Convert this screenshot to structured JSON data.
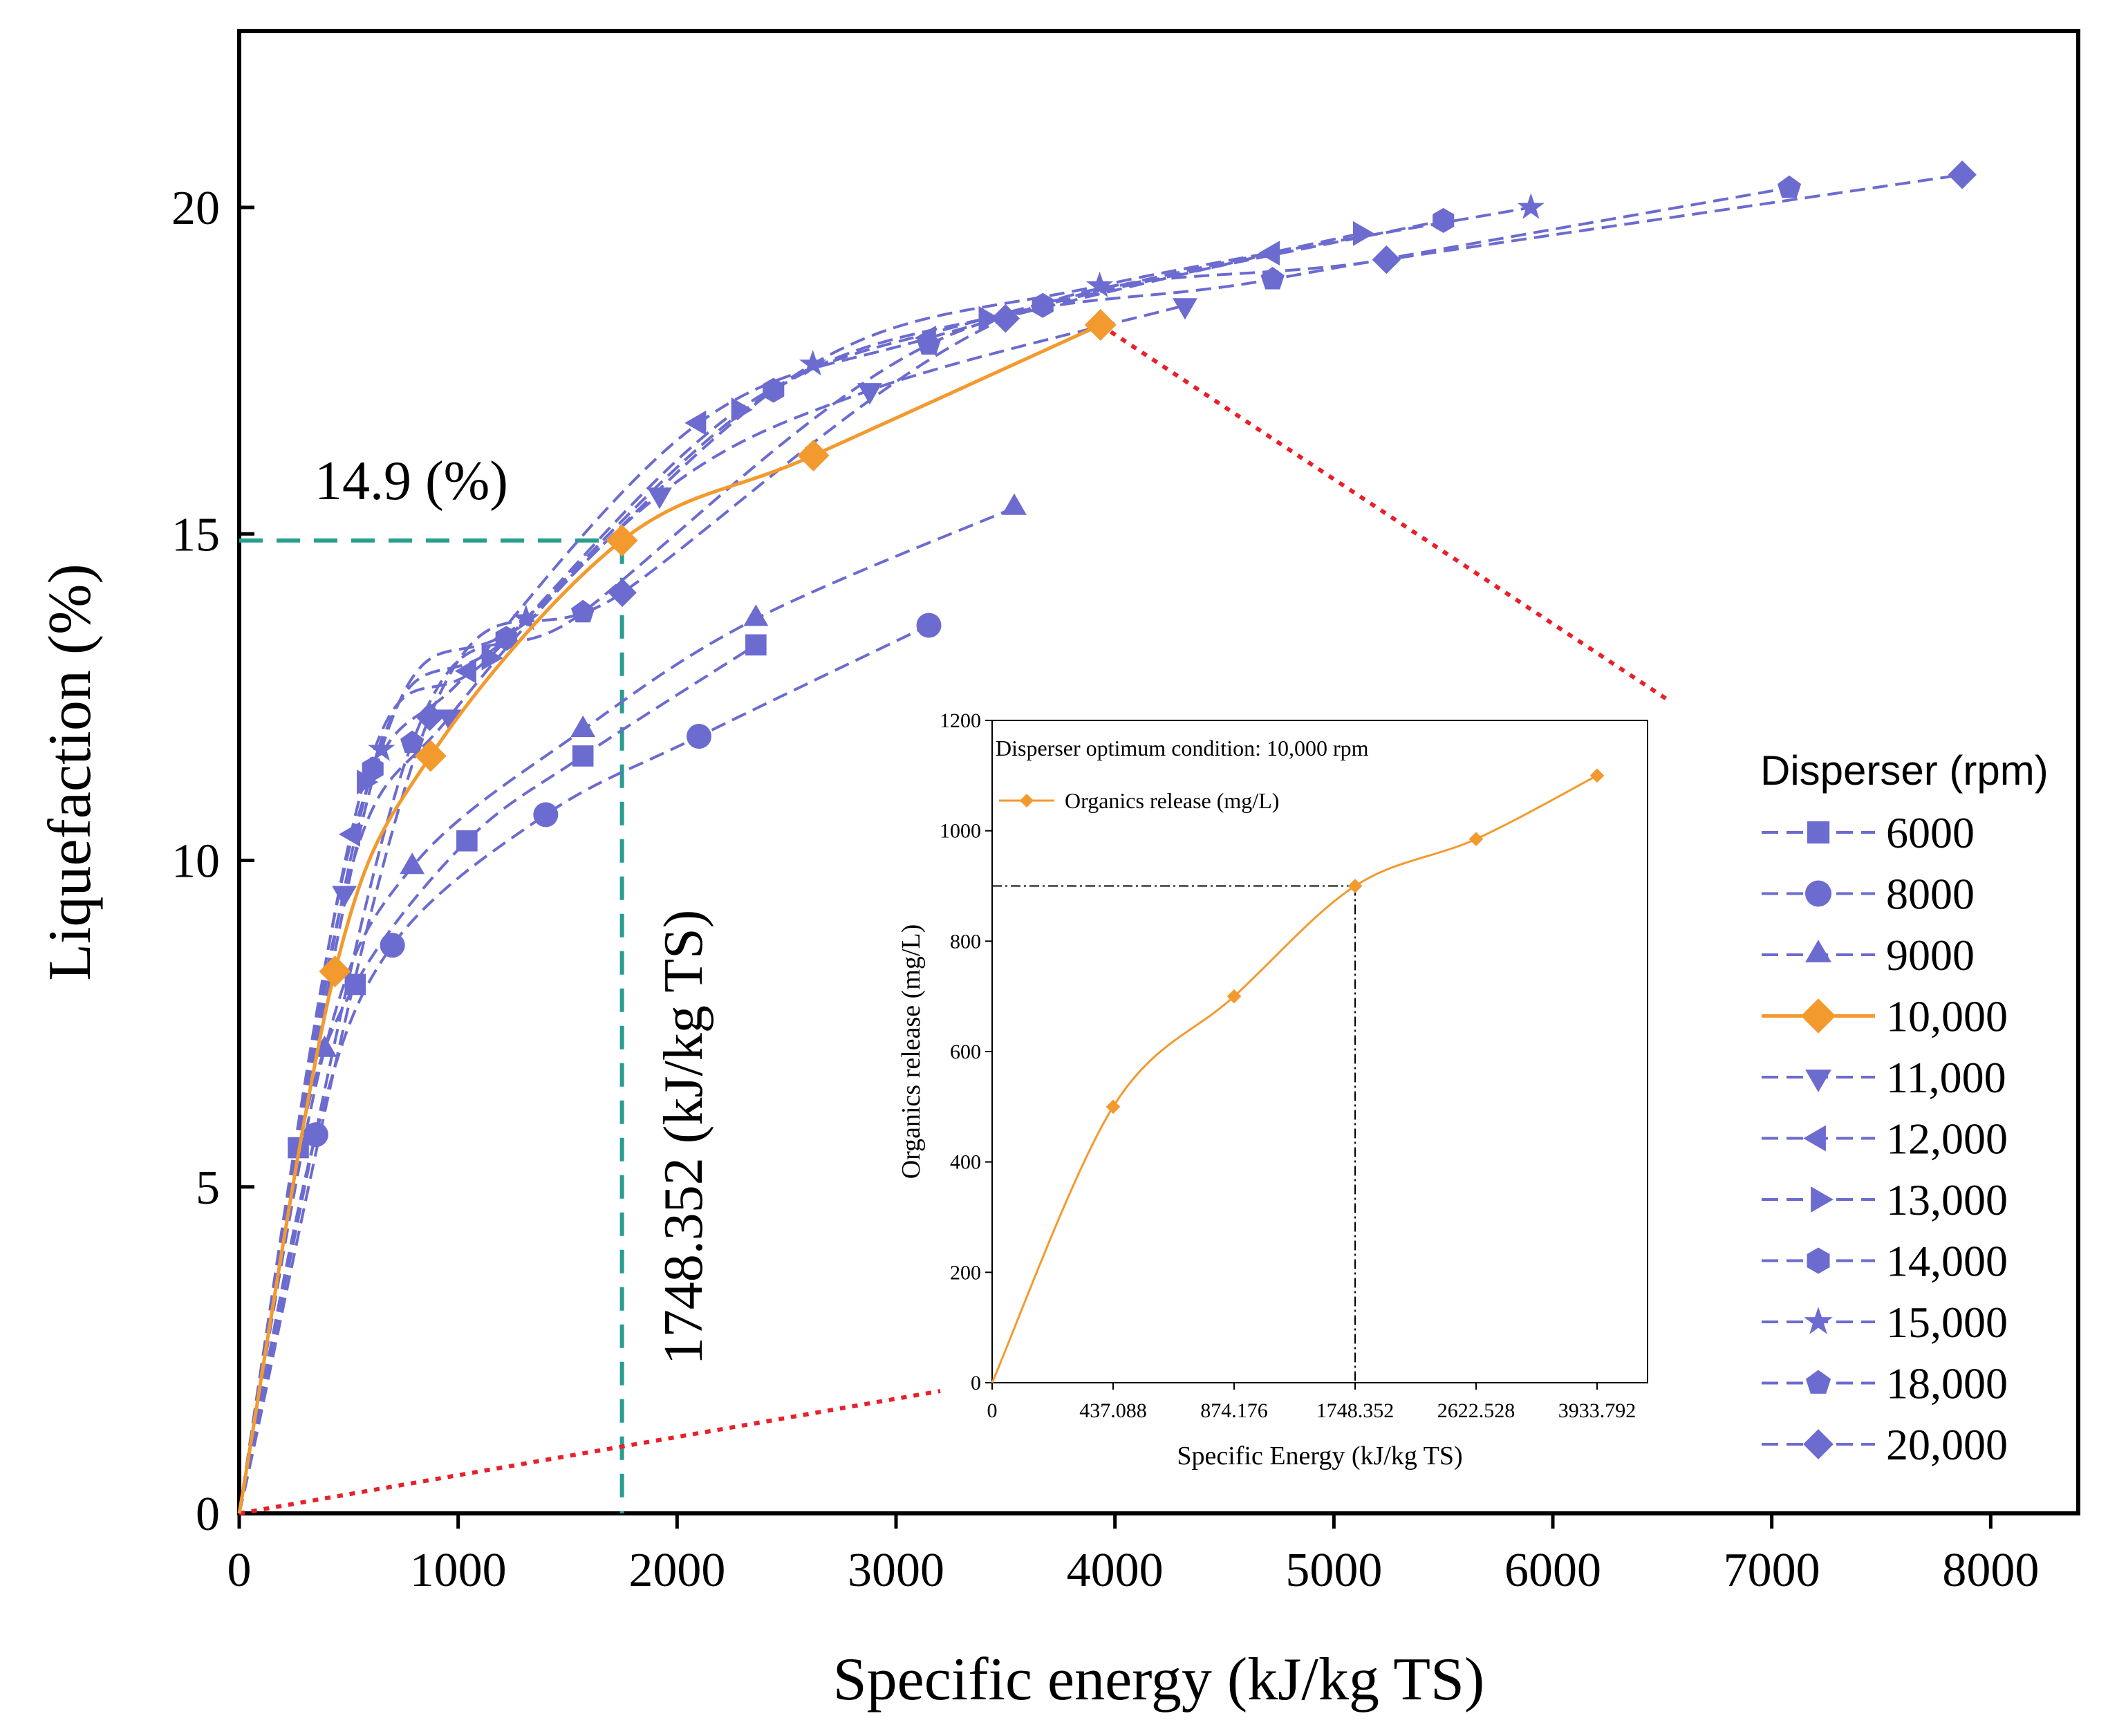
{
  "chart_data": [
    {
      "type": "line",
      "title": "",
      "xlabel": "Specific energy (kJ/kg TS)",
      "ylabel": "Liquefaction (%)",
      "xlim": [
        0,
        8400
      ],
      "ylim": [
        0,
        22.7
      ],
      "xticks": [
        0,
        1000,
        2000,
        3000,
        4000,
        5000,
        6000,
        7000,
        8000
      ],
      "yticks": [
        0,
        5,
        10,
        15,
        20
      ],
      "grid": false,
      "legend": {
        "title": "Disperser (rpm)",
        "placement": "right"
      },
      "annotations": {
        "optimum_y_label": "14.9 (%)",
        "optimum_x_label": "1748.352 (kJ/kg TS)",
        "optimum_x": 1748.352,
        "optimum_y": 14.9,
        "guide_color": "#2a9d8f",
        "connector_color": "#e8202a"
      },
      "series": [
        {
          "name": "6000",
          "marker": "square",
          "color": "#6b6bd0",
          "x": [
            0,
            270,
            530,
            1040,
            1570,
            2360
          ],
          "y": [
            0,
            5.6,
            8.1,
            10.3,
            11.6,
            13.3
          ]
        },
        {
          "name": "8000",
          "marker": "circle",
          "color": "#6b6bd0",
          "x": [
            0,
            350,
            700,
            1400,
            2100,
            3150
          ],
          "y": [
            0,
            5.8,
            8.7,
            10.7,
            11.9,
            13.6
          ]
        },
        {
          "name": "9000",
          "marker": "triangle-up",
          "color": "#6b6bd0",
          "x": [
            0,
            390,
            790,
            1570,
            2360,
            3540
          ],
          "y": [
            0,
            7.1,
            9.9,
            12.0,
            13.7,
            15.4
          ]
        },
        {
          "name": "10,000",
          "marker": "diamond",
          "color": "#f39a2f",
          "x": [
            0,
            437.088,
            874.176,
            1748.352,
            2622.528,
            3933.792
          ],
          "y": [
            0,
            8.3,
            11.6,
            14.9,
            16.2,
            18.2
          ]
        },
        {
          "name": "11,000",
          "marker": "triangle-down",
          "color": "#6b6bd0",
          "x": [
            0,
            480,
            960,
            1920,
            2880,
            4320
          ],
          "y": [
            0,
            9.5,
            12.2,
            15.6,
            17.2,
            18.5
          ]
        },
        {
          "name": "12,000",
          "marker": "triangle-left",
          "color": "#6b6bd0",
          "x": [
            0,
            520,
            1050,
            2100,
            3150,
            4720
          ],
          "y": [
            0,
            10.4,
            12.9,
            16.7,
            18.0,
            19.3
          ]
        },
        {
          "name": "13,000",
          "marker": "triangle-right",
          "color": "#6b6bd0",
          "x": [
            0,
            570,
            1140,
            2280,
            3410,
            5120
          ],
          "y": [
            0,
            11.2,
            13.1,
            16.9,
            18.3,
            19.6
          ]
        },
        {
          "name": "14,000",
          "marker": "hexagon",
          "color": "#6b6bd0",
          "x": [
            0,
            610,
            1220,
            2440,
            3670,
            5500
          ],
          "y": [
            0,
            11.4,
            13.4,
            17.2,
            18.5,
            19.8
          ]
        },
        {
          "name": "15,000",
          "marker": "star",
          "color": "#6b6bd0",
          "x": [
            0,
            650,
            1310,
            2620,
            3930,
            5900
          ],
          "y": [
            0,
            11.7,
            13.7,
            17.6,
            18.8,
            20.0
          ]
        },
        {
          "name": "18,000",
          "marker": "pentagon",
          "color": "#6b6bd0",
          "x": [
            0,
            790,
            1570,
            3150,
            4720,
            7080
          ],
          "y": [
            0,
            11.8,
            13.8,
            17.9,
            18.9,
            20.3
          ]
        },
        {
          "name": "20,000",
          "marker": "diamond",
          "color": "#6b6bd0",
          "x": [
            0,
            870,
            1750,
            3500,
            5240,
            7870
          ],
          "y": [
            0,
            12.2,
            14.1,
            18.3,
            19.2,
            20.5
          ]
        }
      ]
    },
    {
      "type": "line",
      "title": "Disperser optimum condition: 10,000 rpm",
      "xlabel": "Specific Energy (kJ/kg TS)",
      "ylabel": "Organics release (mg/L)",
      "categories": [
        "0",
        "437.088",
        "874.176",
        "1748.352",
        "2622.528",
        "3933.792"
      ],
      "ylim": [
        0,
        1200
      ],
      "yticks": [
        0,
        200,
        400,
        600,
        800,
        1000,
        1200
      ],
      "legend": {
        "placement": "top-left"
      },
      "series": [
        {
          "name": "Organics release (mg/L)",
          "marker": "diamond",
          "color": "#f39a2f",
          "values": [
            0,
            500,
            700,
            900,
            985,
            1100
          ]
        }
      ],
      "annotations": {
        "optimum_category": "1748.352",
        "optimum_value": 900
      }
    }
  ]
}
